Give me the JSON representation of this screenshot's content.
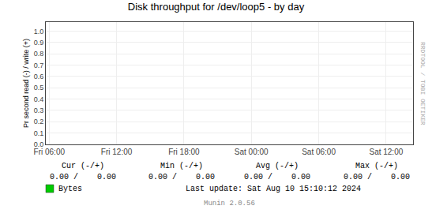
{
  "chart_data": {
    "type": "line",
    "title": "Disk throughput for /dev/loop5 - by day",
    "ylabel": "Pr second read (-) / write (+)",
    "x": [],
    "series": [
      {
        "name": "Bytes",
        "color": "#00cc00",
        "values": []
      }
    ],
    "xlim": [
      -0.05,
      5.4
    ],
    "xticks": [
      {
        "value": 0,
        "label": "Fri 06:00"
      },
      {
        "value": 1,
        "label": "Fri 12:00"
      },
      {
        "value": 2,
        "label": "Fri 18:00"
      },
      {
        "value": 3,
        "label": "Sat 00:00"
      },
      {
        "value": 4,
        "label": "Sat 06:00"
      },
      {
        "value": 5,
        "label": "Sat 12:00"
      }
    ],
    "ylim": [
      0.0,
      1.08
    ],
    "yticks": [
      {
        "value": 0.0,
        "label": "0.0"
      },
      0.1,
      0.2,
      0.3,
      0.4,
      0.5,
      0.6,
      0.7,
      0.8,
      0.9,
      {
        "value": 1.0,
        "label": "1.0"
      }
    ],
    "grid": true,
    "annotations": [
      "Cur (-/+)",
      "Min (-/+)",
      "Avg (-/+)",
      "Max (-/+)",
      "0.00 /    0.00",
      "0.00 /    0.00",
      "0.00 /    0.00",
      "0.00 /    0.00",
      "Last update: Sat Aug 10 15:10:12 2024",
      "Munin 2.0.56",
      "RRDTOOL / TOBI OETIKER"
    ]
  }
}
